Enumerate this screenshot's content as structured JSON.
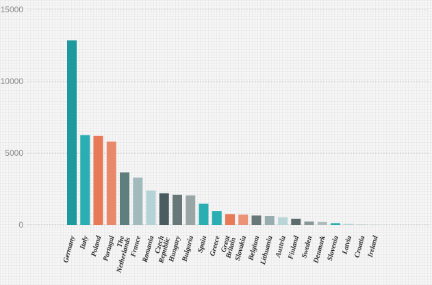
{
  "chart_data": {
    "type": "bar",
    "title": "",
    "xlabel": "",
    "ylabel": "",
    "ylim": [
      0,
      15000
    ],
    "yticks": [
      0,
      5000,
      10000,
      15000
    ],
    "grid": true,
    "categories": [
      "Germany",
      "Italy",
      "Poland",
      "Portugal",
      "The Netherlands",
      "France",
      "Romania",
      "Czech Republic",
      "Hungary",
      "Bulgaria",
      "Spain",
      "Greece",
      "Great Britain",
      "Slovakia",
      "Belgium",
      "Lithuania",
      "Austria",
      "Finland",
      "Sweden",
      "Denmark",
      "Slovenia",
      "Latvia",
      "Croatia",
      "Ireland"
    ],
    "values": [
      12850,
      6250,
      6200,
      5800,
      3650,
      3300,
      2400,
      2200,
      2100,
      2050,
      1480,
      950,
      750,
      720,
      650,
      620,
      520,
      430,
      230,
      200,
      120,
      70,
      40,
      15
    ],
    "colors": [
      "#1e9a9e",
      "#2aaeb2",
      "#e87a58",
      "#e8896a",
      "#5f7e7e",
      "#a1bbbd",
      "#b3d3d6",
      "#4a5c5f",
      "#687878",
      "#9aa5a5",
      "#2aaeb2",
      "#2aaeb2",
      "#e87a58",
      "#ec9276",
      "#687878",
      "#98adad",
      "#b8d6d8",
      "#5c6c6c",
      "#8a9898",
      "#b0bcbc",
      "#2aaeb2",
      "#b8d6d8",
      "#c6d6d6",
      "#c6d6d6"
    ]
  }
}
